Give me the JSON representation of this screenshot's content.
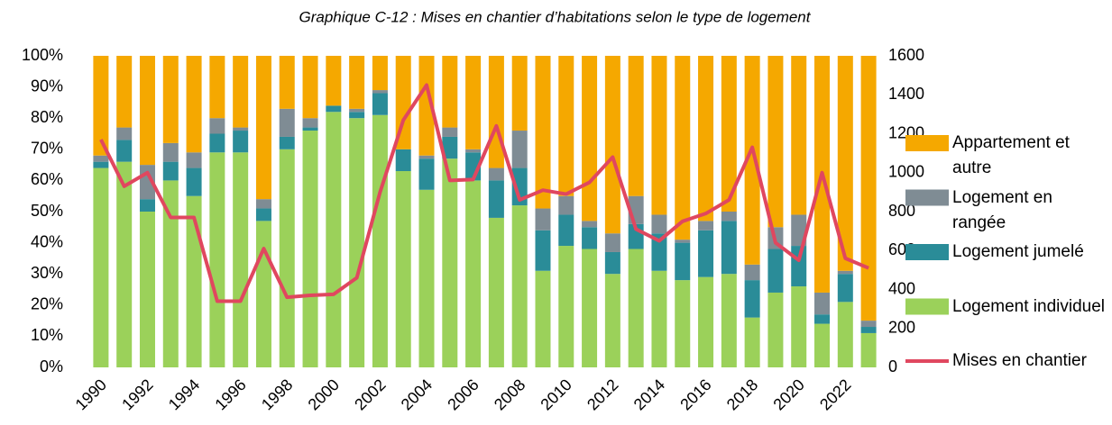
{
  "chart_data": {
    "type": "bar",
    "stacked": true,
    "title": "Graphique C-12 : Mises en chantier d’habitations selon le type de logement",
    "categories": [
      "1990",
      null,
      "1992",
      null,
      "1994",
      null,
      "1996",
      null,
      "1998",
      null,
      "2000",
      null,
      "2002",
      null,
      "2004",
      null,
      "2006",
      null,
      "2008",
      null,
      "2010",
      null,
      "2012",
      null,
      "2014",
      null,
      "2016",
      null,
      "2018",
      null,
      "2020",
      null,
      "2022",
      null
    ],
    "series": [
      {
        "name": "Logement individuel",
        "color": "#9bd15a",
        "values": [
          64,
          66,
          50,
          60,
          55,
          69,
          69,
          47,
          70,
          76,
          82,
          80,
          81,
          63,
          57,
          67,
          60,
          48,
          52,
          31,
          39,
          38,
          30,
          38,
          31,
          28,
          29,
          30,
          16,
          24,
          26,
          14,
          21,
          11
        ]
      },
      {
        "name": "Logement jumelé",
        "color": "#2a8c98",
        "values": [
          2,
          7,
          4,
          6,
          9,
          6,
          7,
          4,
          4,
          1,
          2,
          2,
          7,
          7,
          10,
          7,
          9,
          12,
          12,
          13,
          10,
          7,
          7,
          8,
          12,
          12,
          15,
          17,
          12,
          14,
          13,
          3,
          9,
          2
        ]
      },
      {
        "name": "Logement en rangée",
        "color": "#7f8c94",
        "values": [
          2,
          4,
          11,
          6,
          5,
          5,
          1,
          3,
          9,
          3,
          0,
          1,
          1,
          0,
          1,
          3,
          1,
          4,
          12,
          7,
          6,
          2,
          6,
          9,
          6,
          1,
          3,
          3,
          5,
          7,
          10,
          7,
          1,
          2
        ]
      },
      {
        "name": "Appartement et autre",
        "color": "#f5a800",
        "values": [
          32,
          23,
          35,
          28,
          31,
          20,
          23,
          46,
          17,
          20,
          16,
          17,
          11,
          30,
          32,
          23,
          30,
          36,
          24,
          49,
          45,
          53,
          57,
          45,
          51,
          59,
          53,
          50,
          67,
          55,
          51,
          76,
          69,
          85
        ]
      },
      {
        "name": "Mises en chantier",
        "color": "#e0475f",
        "type": "line",
        "axis": "y2",
        "values": [
          1170,
          930,
          1000,
          770,
          770,
          340,
          340,
          610,
          360,
          370,
          375,
          460,
          900,
          1270,
          1450,
          960,
          965,
          1240,
          860,
          910,
          890,
          950,
          1080,
          710,
          650,
          750,
          790,
          860,
          1130,
          640,
          550,
          1000,
          560,
          510
        ]
      }
    ],
    "ylim": [
      0,
      100
    ],
    "yticks": [
      {
        "value": 0,
        "label": "0%"
      },
      {
        "value": 10,
        "label": "10%"
      },
      {
        "value": 20,
        "label": "20%"
      },
      {
        "value": 30,
        "label": "30%"
      },
      {
        "value": 40,
        "label": "40%"
      },
      {
        "value": 50,
        "label": "50%"
      },
      {
        "value": 60,
        "label": "60%"
      },
      {
        "value": 70,
        "label": "70%"
      },
      {
        "value": 80,
        "label": "80%"
      },
      {
        "value": 90,
        "label": "90%"
      },
      {
        "value": 100,
        "label": "100%"
      }
    ],
    "y2lim": [
      0,
      1600
    ],
    "y2ticks": [
      0,
      200,
      400,
      600,
      800,
      1000,
      1200,
      1400,
      1600
    ],
    "legend": "right"
  }
}
